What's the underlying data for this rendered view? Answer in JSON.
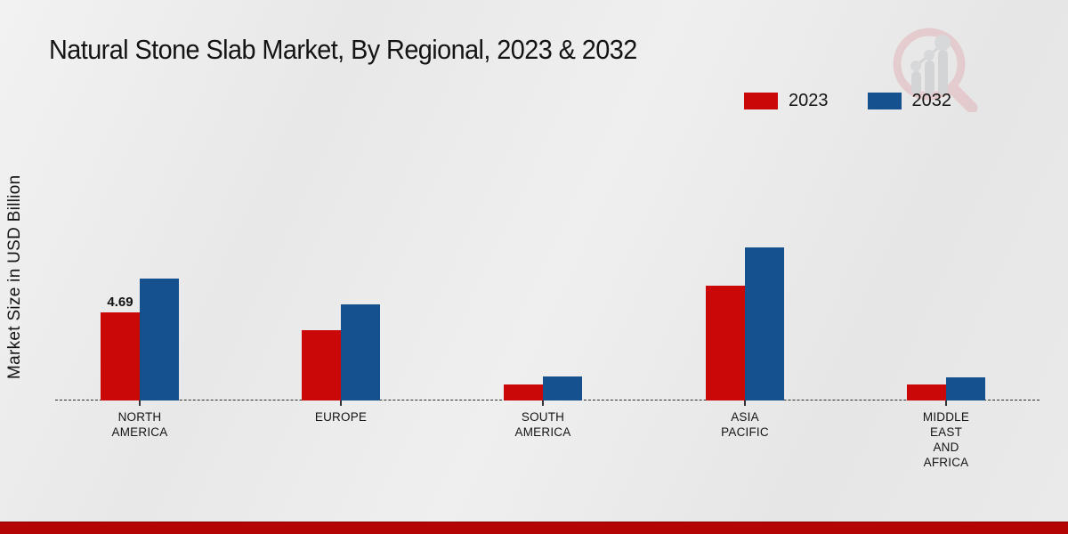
{
  "title": "Natural Stone Slab Market, By Regional, 2023 & 2032",
  "y_axis_label": "Market Size in USD Billion",
  "legend": [
    {
      "label": "2023",
      "color": "#ca0808"
    },
    {
      "label": "2032",
      "color": "#16518f"
    }
  ],
  "colors": {
    "series_2023": "#ca0808",
    "series_2032": "#16518f",
    "bottom_strip": "#b50404",
    "background": "#eaeaea",
    "text": "#151515"
  },
  "watermark": {
    "name": "market-research-magnifier-logo"
  },
  "chart_data": {
    "type": "bar",
    "categories": [
      "NORTH AMERICA",
      "EUROPE",
      "SOUTH AMERICA",
      "ASIA PACIFIC",
      "MIDDLE EAST AND AFRICA"
    ],
    "series": [
      {
        "name": "2023",
        "color": "#ca0808",
        "values": [
          4.69,
          3.75,
          0.85,
          6.1,
          0.85
        ]
      },
      {
        "name": "2032",
        "color": "#16518f",
        "values": [
          6.5,
          5.1,
          1.3,
          8.15,
          1.25
        ]
      }
    ],
    "data_labels": [
      {
        "series_index": 0,
        "category_index": 0,
        "text": "4.69"
      }
    ],
    "title": "Natural Stone Slab Market, By Regional, 2023 & 2032",
    "xlabel": "",
    "ylabel": "Market Size in USD Billion",
    "ylim": [
      0,
      9
    ],
    "grid": false,
    "legend_position": "top-right",
    "axis_style": "dashed-baseline-only"
  }
}
